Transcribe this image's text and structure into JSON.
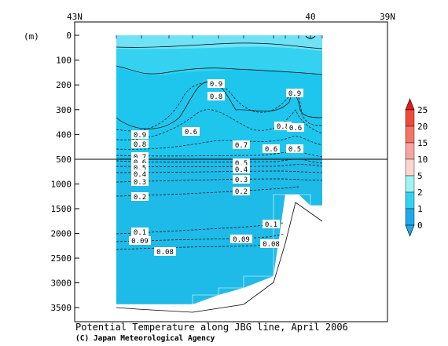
{
  "chart_data": {
    "type": "contour",
    "title": "Potential Temperature along JBG line, April 2006",
    "credit": "(C) Japan Meteorological Agency",
    "y_unit_label": "(m)",
    "top_axis_labels": [
      "43N",
      "40",
      "39N"
    ],
    "upper_depth_ticks": [
      0,
      100,
      200,
      300,
      400,
      500
    ],
    "lower_depth_ticks": [
      1000,
      1500,
      2000,
      2500,
      3000,
      3500
    ],
    "split_depth": 500,
    "colorbar": {
      "levels": [
        "25",
        "20",
        "15",
        "10",
        "5",
        "2",
        "1",
        "0"
      ],
      "colors": [
        "#e41a1c",
        "#ee4a3a",
        "#f47466",
        "#f8a4a0",
        "#fcd4d0",
        "#9ff3f3",
        "#34d2f0",
        "#1eaae8"
      ]
    },
    "contour_labels": [
      {
        "value": "0.9",
        "position": "ridge crest near 200 m"
      },
      {
        "value": "0.8",
        "position": "ridge crest near 250 m"
      },
      {
        "value": "0.9",
        "position": "eastern peak near 250 m"
      },
      {
        "value": "0.8",
        "position": "eastern side near 370 m"
      },
      {
        "value": "0.6",
        "position": "eastern side near 370 m"
      },
      {
        "value": "0.6",
        "position": "central slope near 380 m"
      },
      {
        "value": "0.9",
        "position": "western side near 400 m"
      },
      {
        "value": "0.8",
        "position": "western side near 440 m"
      },
      {
        "value": "0.7",
        "position": "center near 440 m"
      },
      {
        "value": "0.6",
        "position": "east-center near 470 m"
      },
      {
        "value": "0.5",
        "position": "eastern side near 460 m"
      },
      {
        "value": "0.7",
        "position": "western side near 490 m"
      },
      {
        "value": "0.6",
        "position": "western side near 510 m"
      },
      {
        "value": "0.5",
        "position": "western side near 540 m"
      },
      {
        "value": "0.4",
        "position": "western side near 620 m"
      },
      {
        "value": "0.3",
        "position": "western side near 950 m"
      },
      {
        "value": "0.2",
        "position": "western side near 1250 m"
      },
      {
        "value": "0.5",
        "position": "center near 540 m"
      },
      {
        "value": "0.4",
        "position": "center near 620 m"
      },
      {
        "value": "0.3",
        "position": "center near 950 m"
      },
      {
        "value": "0.2",
        "position": "center near 1150 m"
      },
      {
        "value": "0.1",
        "position": "western side near 2000 m"
      },
      {
        "value": "0.09",
        "position": "western side near 2200 m"
      },
      {
        "value": "0.08",
        "position": "western side near 2400 m"
      },
      {
        "value": "0.1",
        "position": "eastern side near 1800 m"
      },
      {
        "value": "0.09",
        "position": "center near 2150 m"
      },
      {
        "value": "0.08",
        "position": "eastern side near 2250 m"
      }
    ]
  }
}
